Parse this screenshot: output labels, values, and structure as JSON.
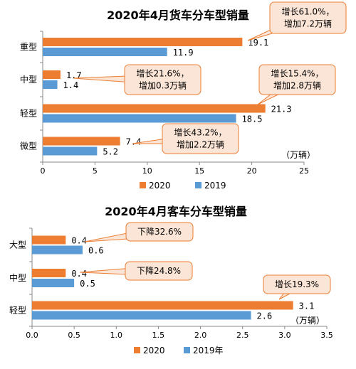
{
  "colors": {
    "s2020": "#ED7D31",
    "s2019": "#5B9BD5",
    "callout_fill": "#FBE5D6",
    "callout_stroke": "#ED7D31",
    "axis": "#888888"
  },
  "chart_data": [
    {
      "type": "bar",
      "orientation": "horizontal",
      "title": "2020年4月货车分车型销量",
      "categories": [
        "重型",
        "中型",
        "轻型",
        "微型"
      ],
      "series": [
        {
          "name": "2020",
          "values": [
            19.1,
            1.7,
            21.3,
            7.4
          ],
          "labels": [
            "19.1",
            "1.7",
            "21.3",
            "7.4"
          ]
        },
        {
          "name": "2019",
          "values": [
            11.9,
            1.4,
            18.5,
            5.2
          ],
          "labels": [
            "11.9",
            "1.4",
            "18.5",
            "5.2"
          ]
        }
      ],
      "xlim": [
        0,
        25
      ],
      "xticks": [
        0,
        5,
        10,
        15,
        20,
        25
      ],
      "xtick_labels": [
        "0",
        "5",
        "10",
        "15",
        "20",
        "25"
      ],
      "unit_label": "（万辆）",
      "legend_position": "bottom",
      "annotations": [
        {
          "category": "重型",
          "lines": [
            "增长61.0%，",
            "增加7.2万辆"
          ]
        },
        {
          "category": "中型",
          "lines": [
            "增长21.6%，",
            "增加0.3万辆"
          ]
        },
        {
          "category": "轻型",
          "lines": [
            "增长15.4%，",
            "增加2.8万辆"
          ]
        },
        {
          "category": "微型",
          "lines": [
            "增长43.2%，",
            "增加2.2万辆"
          ]
        }
      ]
    },
    {
      "type": "bar",
      "orientation": "horizontal",
      "title": "2020年4月客车分车型销量",
      "categories": [
        "大型",
        "中型",
        "轻型"
      ],
      "series": [
        {
          "name": "2020",
          "values": [
            0.4,
            0.4,
            3.1
          ],
          "labels": [
            "0.4",
            "0.4",
            "3.1"
          ]
        },
        {
          "name": "2019年",
          "values": [
            0.6,
            0.5,
            2.6
          ],
          "labels": [
            "0.6",
            "0.5",
            "2.6"
          ]
        }
      ],
      "xlim": [
        0,
        3.5
      ],
      "xticks": [
        0,
        0.5,
        1.0,
        1.5,
        2.0,
        2.5,
        3.0,
        3.5
      ],
      "xtick_labels": [
        "0.0",
        "0.5",
        "1.0",
        "1.5",
        "2.0",
        "2.5",
        "3.0",
        "3.5"
      ],
      "unit_label": "（万辆）",
      "legend_position": "bottom",
      "annotations": [
        {
          "category": "大型",
          "lines": [
            "下降32.6%"
          ]
        },
        {
          "category": "中型",
          "lines": [
            "下降24.8%"
          ]
        },
        {
          "category": "轻型",
          "lines": [
            "增长19.3%"
          ]
        }
      ]
    }
  ]
}
